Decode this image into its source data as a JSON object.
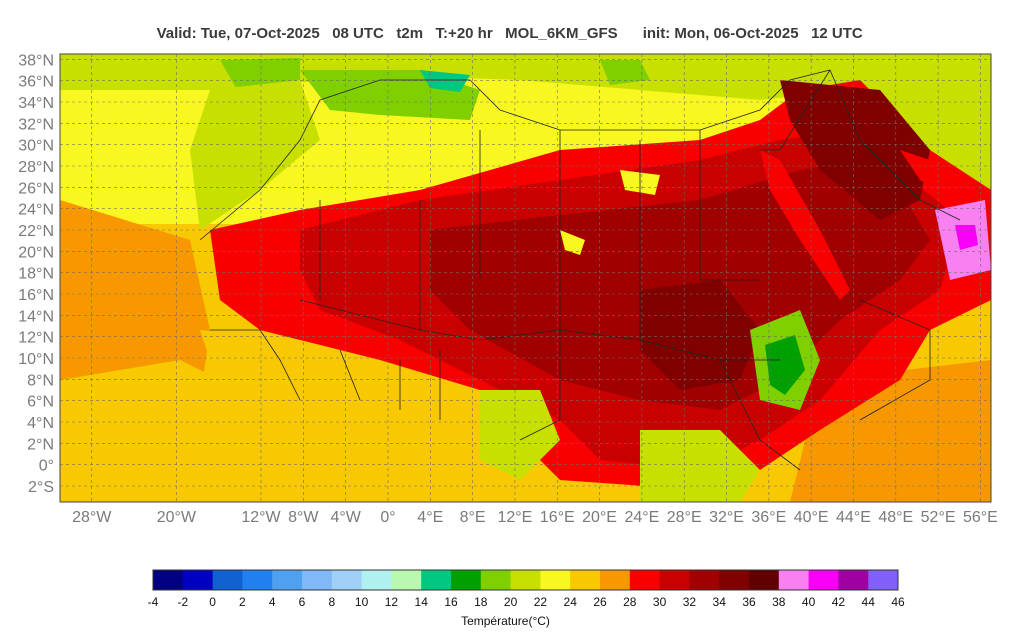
{
  "header": {
    "valid": "Valid: Tue, 07-Oct-2025   08 UTC   t2m   T:+20 hr   MOL_6KM_GFS",
    "init": "init: Mon, 06-Oct-2025   12 UTC"
  },
  "map": {
    "projection": "lat-lon",
    "lon_range": [
      -31,
      57
    ],
    "lat_range": [
      -3.5,
      38.5
    ],
    "grid": true,
    "lat_ticks": [
      "38°N",
      "36°N",
      "34°N",
      "32°N",
      "30°N",
      "28°N",
      "26°N",
      "24°N",
      "22°N",
      "20°N",
      "18°N",
      "16°N",
      "14°N",
      "12°N",
      "10°N",
      "8°N",
      "6°N",
      "4°N",
      "2°N",
      "0°",
      "2°S"
    ],
    "lon_ticks": [
      "28°W",
      "20°W",
      "12°W",
      "8°W",
      "4°W",
      "0°",
      "4°E",
      "8°E",
      "12°E",
      "16°E",
      "20°E",
      "24°E",
      "28°E",
      "32°E",
      "36°E",
      "40°E",
      "44°E",
      "48°E",
      "52°E",
      "56°E"
    ]
  },
  "colorbar": {
    "title": "Température(°C)",
    "labels": [
      "-4",
      "-2",
      "0",
      "2",
      "4",
      "6",
      "8",
      "10",
      "12",
      "14",
      "16",
      "18",
      "20",
      "22",
      "24",
      "26",
      "28",
      "30",
      "32",
      "34",
      "36",
      "38",
      "40",
      "42",
      "44",
      "46"
    ],
    "colors": [
      "#000080",
      "#0000c0",
      "#1060d0",
      "#2080f0",
      "#50a0f0",
      "#80b8f8",
      "#a0d0f8",
      "#b0f0f0",
      "#b8f8b0",
      "#00c880",
      "#00a000",
      "#80d000",
      "#c8e000",
      "#f8f820",
      "#f8c800",
      "#f89800",
      "#f80000",
      "#c80000",
      "#a00000",
      "#800000",
      "#600000",
      "#f880f0",
      "#f800f8",
      "#a000a0",
      "#8060f8"
    ]
  }
}
